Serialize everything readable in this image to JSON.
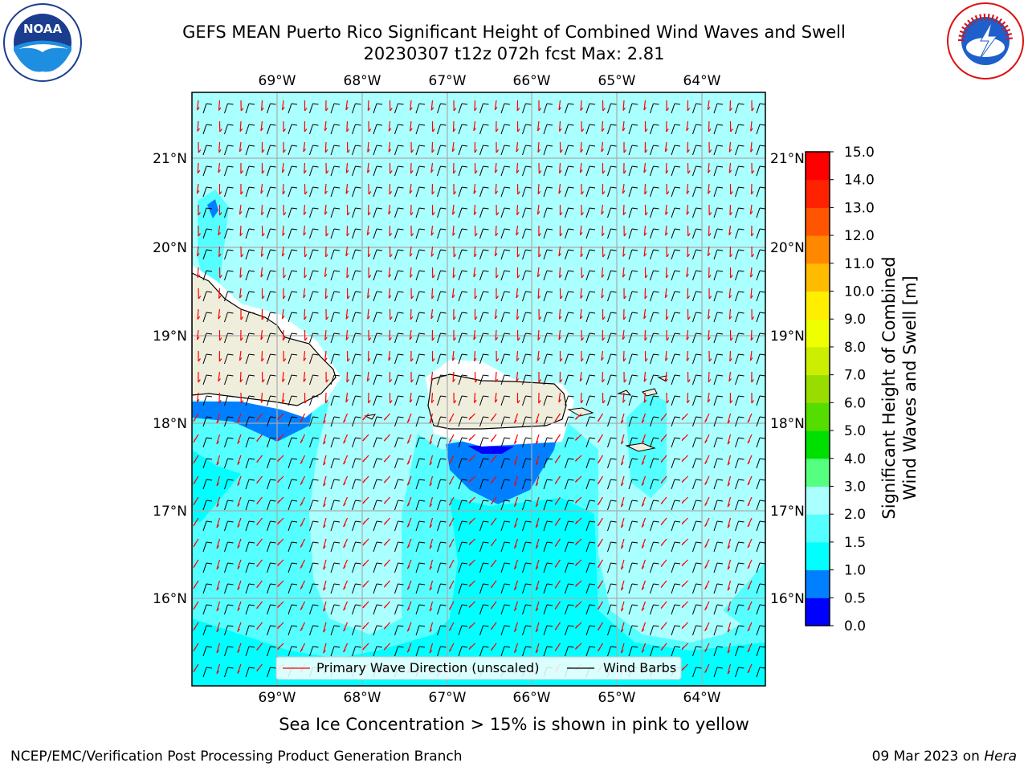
{
  "header": {
    "title_line1": "GEFS MEAN Puerto Rico Significant Height of Combined Wind Waves and Swell",
    "title_line2": "20230307 t12z 072h fcst   Max: 2.81"
  },
  "logos": {
    "left": "noaa-logo",
    "left_text": "NOAA",
    "right": "nws-logo",
    "right_text": "NATIONAL WEATHER SERVICE"
  },
  "map": {
    "lon_labels": [
      "69°W",
      "68°W",
      "67°W",
      "66°W",
      "65°W",
      "64°W"
    ],
    "lat_labels": [
      "21°N",
      "20°N",
      "19°N",
      "18°N",
      "17°N",
      "16°N"
    ],
    "colors": {
      "ocean_light": "#aaffff",
      "ocean_mid": "#55ffff",
      "ocean_cyan": "#00ffff",
      "ocean_blue": "#0080ff",
      "ocean_deep": "#0000ff",
      "land": "#efeedc",
      "wave_arrow": "#ff0000",
      "wind_barb": "#000000"
    }
  },
  "legend": {
    "wave_label": "Primary Wave Direction (unscaled)",
    "barb_label": "Wind Barbs"
  },
  "colorbar": {
    "title_line1": "Significant Height of Combined",
    "title_line2": "Wind Waves and Swell [m]",
    "tick_labels": [
      "0.0",
      "0.5",
      "1.0",
      "1.5",
      "2.0",
      "3.0",
      "4.0",
      "5.0",
      "6.0",
      "7.0",
      "8.0",
      "9.0",
      "10.0",
      "11.0",
      "12.0",
      "13.0",
      "14.0",
      "15.0"
    ],
    "colors": [
      "#0000ff",
      "#0080ff",
      "#00ffff",
      "#55ffff",
      "#aaffff",
      "#55ff80",
      "#00e000",
      "#55dd00",
      "#99dd00",
      "#ccee00",
      "#eeff00",
      "#ffee00",
      "#ffbb00",
      "#ff8800",
      "#ff5500",
      "#ff2200",
      "#ff0000"
    ]
  },
  "notes": {
    "sea_ice": "Sea Ice Concentration > 15% is shown in pink to yellow"
  },
  "footer": {
    "left": "NCEP/EMC/Verification Post Processing Product Generation Branch",
    "date": "09 Mar 2023 on ",
    "host": "Hera"
  }
}
